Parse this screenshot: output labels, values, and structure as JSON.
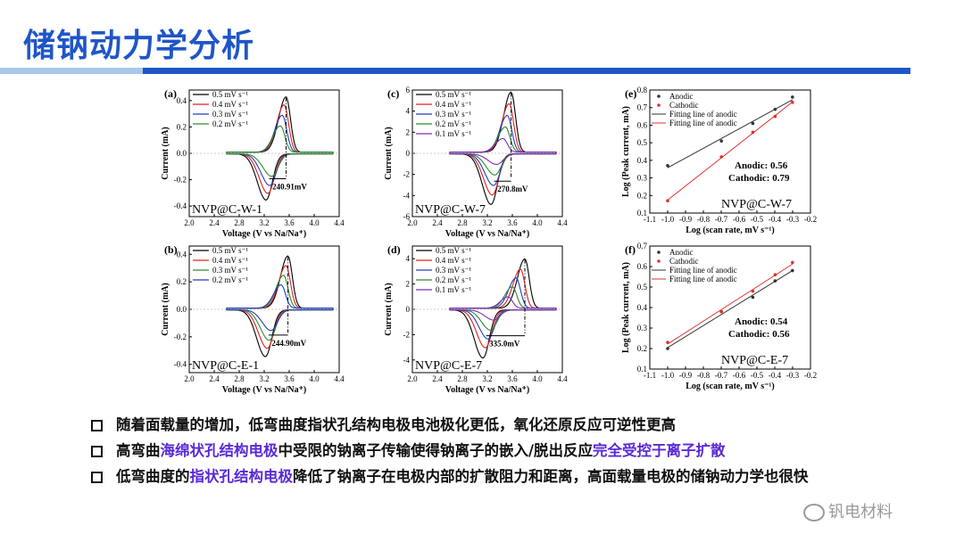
{
  "title": "储钠动力学分析",
  "accent_color": "#1f56c7",
  "bullets": [
    {
      "parts": [
        {
          "t": "随着面载量的增加，低弯曲度指状孔结构电极电池极化更低，氧化还原反应可逆性更高",
          "h": false
        }
      ]
    },
    {
      "parts": [
        {
          "t": "高弯曲",
          "h": false
        },
        {
          "t": "海绵状孔结构电极",
          "h": true
        },
        {
          "t": "中受限的钠离子传输使得钠离子的嵌入/脱出反应",
          "h": false
        },
        {
          "t": "完全受控于离子扩散",
          "h": true
        }
      ]
    },
    {
      "parts": [
        {
          "t": "低弯曲度的",
          "h": false
        },
        {
          "t": "指状孔结构电极",
          "h": true
        },
        {
          "t": "降低了钠离子在电极内部的扩散阻力和距离，高面载量电极的储钠动力学也很快",
          "h": false
        }
      ]
    }
  ],
  "watermark": "钒电材料",
  "chart_data": [
    {
      "panel": "(a)",
      "type": "line",
      "sample": "NVP@C-W-1",
      "xlabel": "Voltage (V vs Na/Na⁺)",
      "ylabel": "Current (mA)",
      "xlim": [
        2.0,
        4.4
      ],
      "ylim": [
        -0.48,
        0.48
      ],
      "xticks": [
        "2.0",
        "2.4",
        "2.8",
        "3.2",
        "3.6",
        "4.0",
        "4.4"
      ],
      "yticks": [
        "-0.4",
        "-0.2",
        "0.0",
        "0.2",
        "0.4"
      ],
      "annotation": "240.91mV",
      "series": [
        {
          "name": "0.5 mV s⁻¹",
          "color": "#000000",
          "a_peak": [
            3.55,
            0.42
          ],
          "c_peak": [
            3.23,
            -0.35
          ]
        },
        {
          "name": "0.4 mV s⁻¹",
          "color": "#e02020",
          "a_peak": [
            3.52,
            0.36
          ],
          "c_peak": [
            3.26,
            -0.3
          ]
        },
        {
          "name": "0.3 mV s⁻¹",
          "color": "#1f3fbf",
          "a_peak": [
            3.49,
            0.28
          ],
          "c_peak": [
            3.29,
            -0.24
          ]
        },
        {
          "name": "0.2 mV s⁻¹",
          "color": "#2e8b2e",
          "a_peak": [
            3.46,
            0.2
          ],
          "c_peak": [
            3.32,
            -0.17
          ]
        }
      ]
    },
    {
      "panel": "(c)",
      "type": "line",
      "sample": "NVP@C-W-7",
      "xlabel": "Voltage (V vs Na/Na⁺)",
      "ylabel": "Current (mA)",
      "xlim": [
        2.0,
        4.4
      ],
      "ylim": [
        -6,
        6
      ],
      "xticks": [
        "2.0",
        "2.4",
        "2.8",
        "3.2",
        "3.6",
        "4.0",
        "4.4"
      ],
      "yticks": [
        "-6",
        "-4",
        "-2",
        "0",
        "2",
        "4",
        "6"
      ],
      "annotation": "270.8mV",
      "series": [
        {
          "name": "0.5 mV s⁻¹",
          "color": "#000000",
          "a_peak": [
            3.58,
            5.7
          ],
          "c_peak": [
            3.26,
            -4.8
          ]
        },
        {
          "name": "0.4 mV s⁻¹",
          "color": "#e02020",
          "a_peak": [
            3.55,
            4.6
          ],
          "c_peak": [
            3.28,
            -3.9
          ]
        },
        {
          "name": "0.3 mV s⁻¹",
          "color": "#1f3fbf",
          "a_peak": [
            3.52,
            3.5
          ],
          "c_peak": [
            3.3,
            -3.0
          ]
        },
        {
          "name": "0.2 mV s⁻¹",
          "color": "#2e8b2e",
          "a_peak": [
            3.49,
            2.4
          ],
          "c_peak": [
            3.32,
            -2.0
          ]
        },
        {
          "name": "0.1 mV s⁻¹",
          "color": "#7b2fb5",
          "a_peak": [
            3.45,
            1.3
          ],
          "c_peak": [
            3.35,
            -1.0
          ]
        }
      ]
    },
    {
      "panel": "(b)",
      "type": "line",
      "sample": "NVP@C-E-1",
      "xlabel": "Voltage (V vs Na/Na⁺)",
      "ylabel": "Current (mA)",
      "xlim": [
        2.0,
        4.4
      ],
      "ylim": [
        -0.46,
        0.46
      ],
      "xticks": [
        "2.0",
        "2.4",
        "2.8",
        "3.2",
        "3.6",
        "4.0",
        "4.4"
      ],
      "yticks": [
        "-0.4",
        "-0.2",
        "0.0",
        "0.2",
        "0.4"
      ],
      "annotation": "244.90mV",
      "series": [
        {
          "name": "0.5 mV s⁻¹",
          "color": "#000000",
          "a_peak": [
            3.58,
            0.38
          ],
          "c_peak": [
            3.22,
            -0.34
          ]
        },
        {
          "name": "0.4 mV s⁻¹",
          "color": "#e02020",
          "a_peak": [
            3.55,
            0.31
          ],
          "c_peak": [
            3.25,
            -0.28
          ]
        },
        {
          "name": "0.3 mV s⁻¹",
          "color": "#2e8b2e",
          "a_peak": [
            3.51,
            0.24
          ],
          "c_peak": [
            3.28,
            -0.22
          ]
        },
        {
          "name": "0.2 mV s⁻¹",
          "color": "#1f3fbf",
          "a_peak": [
            3.47,
            0.17
          ],
          "c_peak": [
            3.31,
            -0.15
          ]
        }
      ]
    },
    {
      "panel": "(d)",
      "type": "line",
      "sample": "NVP@C-E-7",
      "xlabel": "Voltage (V vs Na/Na⁺)",
      "ylabel": "Current (mA)",
      "xlim": [
        2.0,
        4.4
      ],
      "ylim": [
        -5,
        5
      ],
      "xticks": [
        "2.0",
        "2.4",
        "2.8",
        "3.2",
        "3.6",
        "4.0",
        "4.4"
      ],
      "yticks": [
        "-4",
        "-2",
        "0",
        "2",
        "4"
      ],
      "annotation": "335.0mV",
      "series": [
        {
          "name": "0.5 mV s⁻¹",
          "color": "#000000",
          "a_peak": [
            3.8,
            3.9
          ],
          "c_peak": [
            3.13,
            -3.8
          ]
        },
        {
          "name": "0.4 mV s⁻¹",
          "color": "#e02020",
          "a_peak": [
            3.73,
            3.1
          ],
          "c_peak": [
            3.17,
            -3.0
          ]
        },
        {
          "name": "0.3 mV s⁻¹",
          "color": "#1f3fbf",
          "a_peak": [
            3.66,
            2.4
          ],
          "c_peak": [
            3.21,
            -2.3
          ]
        },
        {
          "name": "0.2 mV s⁻¹",
          "color": "#2e8b2e",
          "a_peak": [
            3.6,
            1.7
          ],
          "c_peak": [
            3.25,
            -1.6
          ]
        },
        {
          "name": "0.1 mV s⁻¹",
          "color": "#7b2fb5",
          "a_peak": [
            3.53,
            0.9
          ],
          "c_peak": [
            3.3,
            -0.8
          ]
        }
      ]
    },
    {
      "panel": "(e)",
      "type": "scatter",
      "sample": "NVP@C-W-7",
      "xlabel": "Log (scan rate, mV s⁻¹)",
      "ylabel": "Log (Peak current, mA)",
      "xlim": [
        -1.1,
        -0.2
      ],
      "ylim": [
        0.1,
        0.8
      ],
      "xticks": [
        "-1.1",
        "-1.0",
        "-0.9",
        "-0.8",
        "-0.7",
        "-0.6",
        "-0.5",
        "-0.4",
        "-0.3",
        "-0.2"
      ],
      "yticks": [
        "0.1",
        "0.2",
        "0.3",
        "0.4",
        "0.5",
        "0.6",
        "0.7",
        "0.8"
      ],
      "slope_text": [
        "Anodic: 0.56",
        "Cathodic: 0.79"
      ],
      "legend": [
        "Anodic",
        "Cathodic",
        "Fitting line of anodic",
        "Fitting line of anodic"
      ],
      "series": [
        {
          "name": "Anodic",
          "color": "#333333",
          "x": [
            -1.0,
            -0.699,
            -0.523,
            -0.398,
            -0.301
          ],
          "y": [
            0.37,
            0.51,
            0.61,
            0.69,
            0.76
          ]
        },
        {
          "name": "Cathodic",
          "color": "#e03030",
          "x": [
            -1.0,
            -0.699,
            -0.523,
            -0.398,
            -0.301
          ],
          "y": [
            0.17,
            0.42,
            0.56,
            0.65,
            0.73
          ]
        }
      ]
    },
    {
      "panel": "(f)",
      "type": "scatter",
      "sample": "NVP@C-E-7",
      "xlabel": "Log (scan rate, mV s⁻¹)",
      "ylabel": "Log (Peak current, mA)",
      "xlim": [
        -1.1,
        -0.2
      ],
      "ylim": [
        0.1,
        0.7
      ],
      "xticks": [
        "-1.1",
        "-1.0",
        "-0.9",
        "-0.8",
        "-0.7",
        "-0.6",
        "-0.5",
        "-0.4",
        "-0.3",
        "-0.2"
      ],
      "yticks": [
        "0.1",
        "0.2",
        "0.3",
        "0.4",
        "0.5",
        "0.6",
        "0.7"
      ],
      "slope_text": [
        "Anodic: 0.54",
        "Cathodic: 0.56"
      ],
      "legend": [
        "Anodic",
        "Cathodic",
        "Fitting line of anodic",
        "Fitting line of anodic"
      ],
      "series": [
        {
          "name": "Anodic",
          "color": "#333333",
          "x": [
            -1.0,
            -0.699,
            -0.523,
            -0.398,
            -0.301
          ],
          "y": [
            0.2,
            0.38,
            0.45,
            0.53,
            0.58
          ]
        },
        {
          "name": "Cathodic",
          "color": "#e03030",
          "x": [
            -1.0,
            -0.699,
            -0.523,
            -0.398,
            -0.301
          ],
          "y": [
            0.23,
            0.38,
            0.48,
            0.56,
            0.62
          ]
        }
      ]
    }
  ]
}
